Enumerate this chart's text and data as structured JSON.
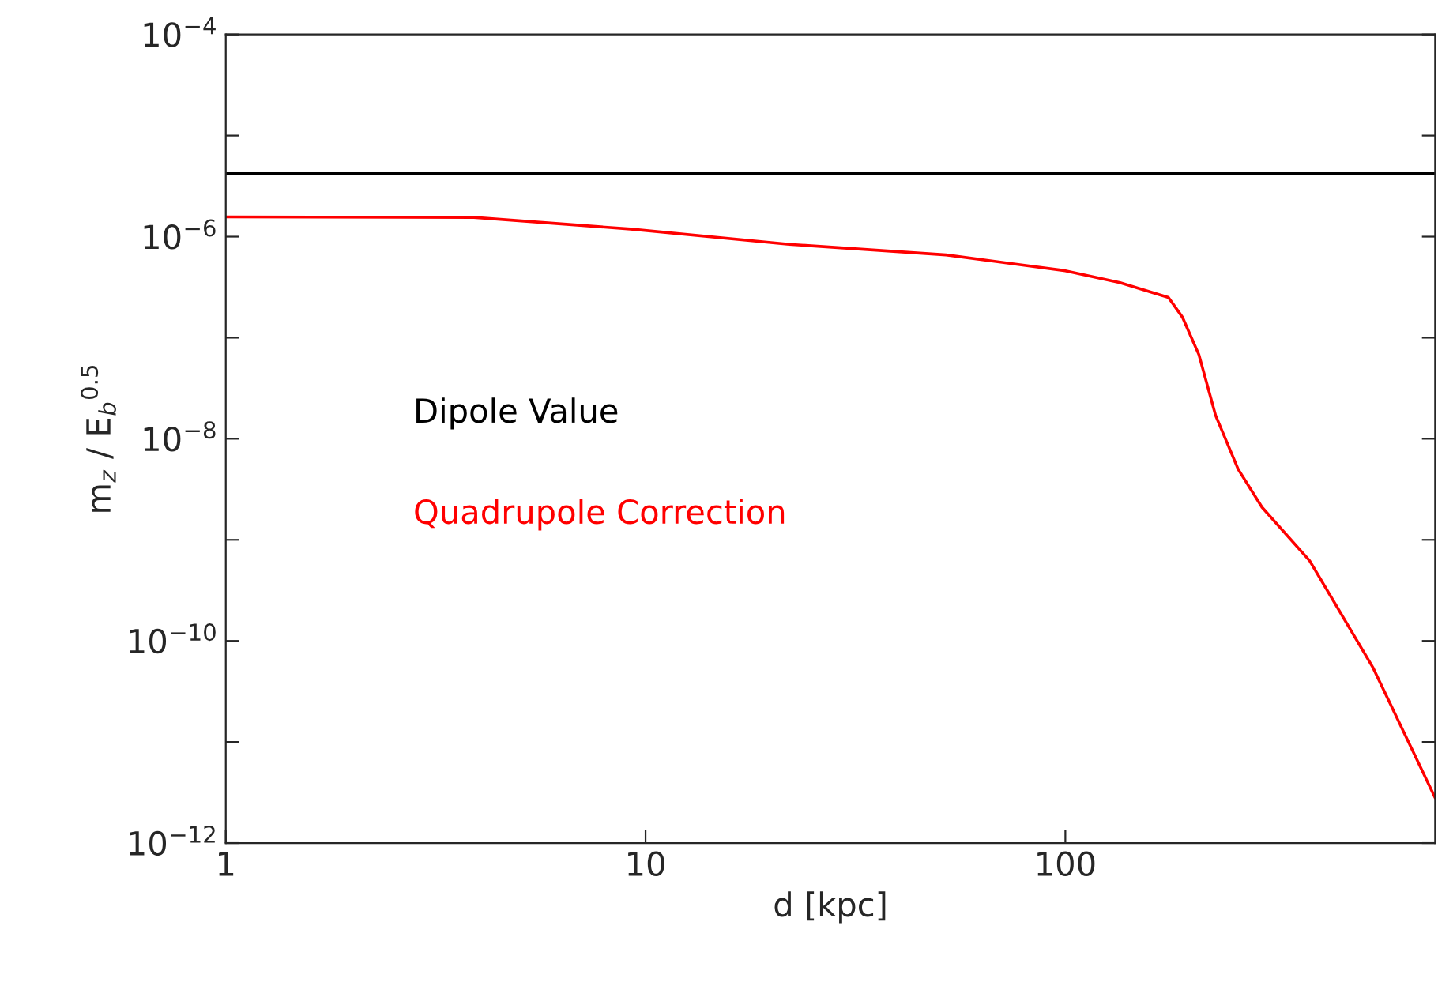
{
  "chart_data": {
    "type": "line",
    "xlabel": "d [kpc]",
    "ylabel": "m$_{z}$ / E$_{b}$$^{0.5}$",
    "log": "xy",
    "xlim": [
      1,
      760
    ],
    "xticks": [
      1,
      10,
      100
    ],
    "ylim": [
      1e-12,
      0.0001
    ],
    "yticks": [
      {
        "value": 1e-12,
        "label": "10$^{−12}$"
      },
      {
        "value": 1e-11,
        "label": null
      },
      {
        "value": 1e-10,
        "label": "10$^{−10}$"
      },
      {
        "value": 1e-09,
        "label": null
      },
      {
        "value": 1e-08,
        "label": "10$^{−8}$"
      },
      {
        "value": 1e-07,
        "label": null
      },
      {
        "value": 1e-06,
        "label": "10$^{−6}$"
      },
      {
        "value": 1e-05,
        "label": null
      },
      {
        "value": 0.0001,
        "label": "10$^{−4}$"
      }
    ],
    "grid": false,
    "legend": false,
    "series": [
      {
        "name": "Dipole Value",
        "color": "#000000",
        "x": [
          1,
          760
        ],
        "values": [
          4.2e-06,
          4.2e-06
        ]
      },
      {
        "name": "Quadrupole Correction",
        "color": "#ff0000",
        "x": [
          1,
          3.9,
          9.2,
          22,
          52,
          100,
          135,
          176,
          190,
          208,
          228,
          258,
          294,
          382,
          541,
          760
        ],
        "values": [
          1.57e-06,
          1.55e-06,
          1.19e-06,
          8.4e-07,
          6.6e-07,
          4.6e-07,
          3.5e-07,
          2.5e-07,
          1.6e-07,
          6.8e-08,
          1.7e-08,
          5e-09,
          2.1e-09,
          6.2e-10,
          5.4e-11,
          2.8e-12
        ]
      }
    ]
  }
}
